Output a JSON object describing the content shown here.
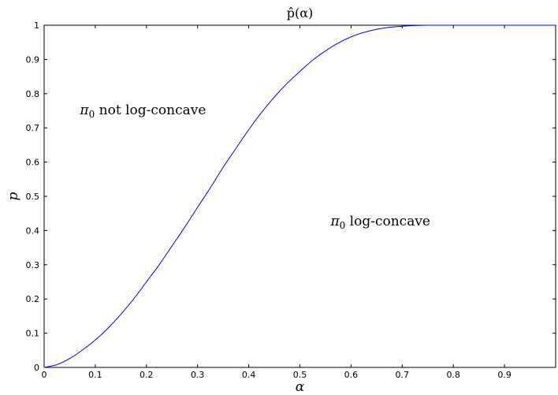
{
  "chart_data": {
    "type": "line",
    "title": "p̂(α)",
    "xlabel": "α",
    "ylabel": "p",
    "xlim": [
      0,
      1
    ],
    "ylim": [
      0,
      1
    ],
    "xticks": [
      "0",
      "0.1",
      "0.2",
      "0.3",
      "0.4",
      "0.5",
      "0.6",
      "0.7",
      "0.8",
      "0.9"
    ],
    "yticks": [
      "0",
      "0.1",
      "0.2",
      "0.3",
      "0.4",
      "0.5",
      "0.6",
      "0.7",
      "0.8",
      "0.9",
      "1"
    ],
    "grid": false,
    "line_color": "#0000ff",
    "series": [
      {
        "x": [
          0,
          0.025,
          0.05,
          0.075,
          0.1,
          0.125,
          0.15,
          0.175,
          0.2,
          0.225,
          0.25,
          0.275,
          0.3,
          0.325,
          0.35,
          0.375,
          0.4,
          0.425,
          0.45,
          0.475,
          0.5,
          0.525,
          0.55,
          0.575,
          0.6,
          0.625,
          0.65,
          0.675,
          0.7,
          0.725,
          0.75,
          0.775,
          0.8,
          0.85,
          0.9,
          0.95,
          1.0
        ],
        "values": [
          0,
          0.008,
          0.026,
          0.051,
          0.08,
          0.115,
          0.155,
          0.2,
          0.25,
          0.3,
          0.355,
          0.41,
          0.468,
          0.525,
          0.585,
          0.64,
          0.695,
          0.745,
          0.79,
          0.83,
          0.865,
          0.898,
          0.925,
          0.948,
          0.966,
          0.979,
          0.988,
          0.994,
          0.997,
          0.999,
          1.0,
          1.0,
          1.0,
          1.0,
          1.0,
          1.0,
          1.0
        ]
      }
    ],
    "annotations": [
      {
        "symbol": "π",
        "subscript": "0",
        "text": " not log-concave",
        "x": 0.07,
        "y": 0.74
      },
      {
        "symbol": "π",
        "subscript": "0",
        "text": " log-concave",
        "x": 0.56,
        "y": 0.415
      }
    ]
  }
}
